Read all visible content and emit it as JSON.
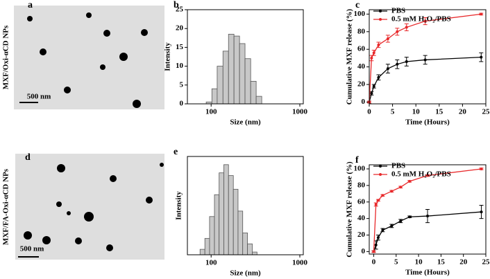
{
  "images": [
    {
      "label": "a",
      "side_label": "MXF/Oxi-αCD NPs",
      "scale_bar": "500 nm"
    },
    {
      "label": "d",
      "side_label": "MXF/FA-Oxi-αCD NPs",
      "scale_bar": "500 nm"
    }
  ],
  "chart_data": [
    {
      "type": "histogram",
      "label": "b",
      "xlabel": "Size (nm)",
      "ylabel": "Intensity",
      "xscale": "log",
      "bins": [
        88,
        102,
        117,
        136,
        157,
        181,
        209,
        241,
        279,
        322,
        372
      ],
      "values": [
        0.5,
        4,
        10,
        14,
        18.5,
        18,
        16,
        12,
        6,
        2
      ],
      "color": "#c8c8c8",
      "xlim": [
        54,
        1094
      ],
      "xticks": [
        100,
        1000
      ],
      "ylim": [
        0,
        25
      ],
      "yticks": [
        0,
        5,
        10,
        15,
        20,
        25
      ]
    },
    {
      "type": "line",
      "label": "c",
      "xlabel": "Time (Hours)",
      "ylabel": "Cumulative MXF release (%)",
      "x": [
        0,
        0.5,
        1,
        2,
        4,
        6,
        8,
        12,
        24
      ],
      "series": [
        {
          "name": "PBS",
          "color": "#000000",
          "values": [
            0,
            10,
            18,
            28,
            38,
            43,
            46,
            48,
            51
          ],
          "errors": [
            1,
            2,
            2,
            3,
            5,
            5,
            5,
            5,
            5
          ]
        },
        {
          "name": "0.5 mM H₂O₂/PBS",
          "color": "#e8282a",
          "values": [
            0,
            50,
            56,
            65,
            72,
            80,
            85,
            92,
            100
          ],
          "errors": [
            1,
            3,
            3,
            3,
            4,
            4,
            4,
            4,
            1
          ]
        }
      ],
      "xlim": [
        0,
        25
      ],
      "xticks": [
        0,
        5,
        10,
        15,
        20,
        25
      ],
      "ylim": [
        -2,
        105
      ],
      "yticks": [
        0,
        20,
        40,
        60,
        80,
        100
      ],
      "legend": "upper left"
    },
    {
      "type": "histogram",
      "label": "e",
      "xlabel": "Size (nm)",
      "ylabel": "Intensity",
      "xscale": "log",
      "bins": [
        75,
        85,
        96,
        109,
        123,
        139,
        157,
        178,
        201,
        227,
        257,
        291,
        329
      ],
      "values": [
        1,
        3,
        7,
        11,
        15,
        16.5,
        14.5,
        12,
        8,
        4,
        2,
        0.5
      ],
      "color": "#c8c8c8",
      "xlim": [
        54,
        1094
      ],
      "xticks": [
        100,
        1000
      ],
      "ylim": [
        0,
        18
      ]
    },
    {
      "type": "line",
      "label": "f",
      "xlabel": "Time (Hours)",
      "ylabel": "Cumulative MXF release (%)",
      "x": [
        0,
        0.5,
        1,
        2,
        4,
        6,
        8,
        12,
        24
      ],
      "series": [
        {
          "name": "PBS",
          "color": "#000000",
          "values": [
            0,
            8,
            17,
            26,
            31,
            37,
            42,
            43,
            48
          ],
          "errors": [
            1,
            5,
            3,
            2,
            2,
            2,
            1,
            8,
            8
          ]
        },
        {
          "name": "0.5 mM H₂O₂/PBS",
          "color": "#e8282a",
          "values": [
            0,
            57,
            62,
            68,
            73,
            78,
            85,
            92,
            100
          ],
          "errors": [
            1,
            2,
            1,
            1,
            1,
            1,
            1,
            1,
            1
          ]
        }
      ],
      "xlim": [
        -1,
        25
      ],
      "xticks": [
        0,
        5,
        10,
        15,
        20,
        25
      ],
      "ylim": [
        -3,
        105
      ],
      "yticks": [
        0,
        20,
        40,
        60,
        80,
        100
      ],
      "legend": "upper left"
    }
  ]
}
